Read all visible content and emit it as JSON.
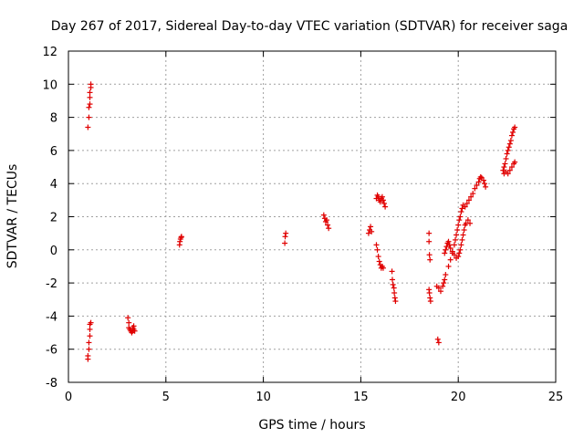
{
  "chart_data": {
    "type": "scatter",
    "title": "Day 267 of 2017, Sidereal Day-to-day VTEC variation (SDTVAR) for receiver saga",
    "xlabel": "GPS time / hours",
    "ylabel": "SDTVAR / TECUs",
    "xlim": [
      0,
      25
    ],
    "ylim": [
      -8,
      12
    ],
    "xticks": [
      0,
      5,
      10,
      15,
      20,
      25
    ],
    "yticks": [
      -8,
      -6,
      -4,
      -2,
      0,
      2,
      4,
      6,
      8,
      10,
      12
    ],
    "grid": true,
    "marker": "plus",
    "color": "#e00000",
    "series": [
      {
        "name": "SDTVAR",
        "points": [
          [
            1.0,
            7.4
          ],
          [
            1.05,
            8.0
          ],
          [
            1.05,
            8.6
          ],
          [
            1.1,
            8.8
          ],
          [
            1.1,
            9.2
          ],
          [
            1.1,
            9.5
          ],
          [
            1.15,
            9.8
          ],
          [
            1.15,
            10.0
          ],
          [
            1.0,
            -6.6
          ],
          [
            1.0,
            -6.4
          ],
          [
            1.05,
            -6.0
          ],
          [
            1.05,
            -5.6
          ],
          [
            1.1,
            -5.2
          ],
          [
            1.1,
            -4.8
          ],
          [
            1.1,
            -4.5
          ],
          [
            1.15,
            -4.4
          ],
          [
            3.05,
            -4.1
          ],
          [
            3.1,
            -4.4
          ],
          [
            3.1,
            -4.7
          ],
          [
            3.15,
            -4.8
          ],
          [
            3.2,
            -4.9
          ],
          [
            3.25,
            -5.0
          ],
          [
            3.3,
            -4.9
          ],
          [
            3.3,
            -4.7
          ],
          [
            3.35,
            -4.6
          ],
          [
            3.35,
            -4.8
          ],
          [
            3.4,
            -4.9
          ],
          [
            5.7,
            0.3
          ],
          [
            5.72,
            0.5
          ],
          [
            5.75,
            0.65
          ],
          [
            5.78,
            0.75
          ],
          [
            5.8,
            0.8
          ],
          [
            11.1,
            0.4
          ],
          [
            11.12,
            0.8
          ],
          [
            11.15,
            1.0
          ],
          [
            13.1,
            2.1
          ],
          [
            13.15,
            1.9
          ],
          [
            13.2,
            1.7
          ],
          [
            13.25,
            1.8
          ],
          [
            13.3,
            1.5
          ],
          [
            13.35,
            1.3
          ],
          [
            15.4,
            1.0
          ],
          [
            15.45,
            1.2
          ],
          [
            15.5,
            1.4
          ],
          [
            15.55,
            1.1
          ],
          [
            15.8,
            0.3
          ],
          [
            15.85,
            0.0
          ],
          [
            15.9,
            -0.4
          ],
          [
            15.95,
            -0.7
          ],
          [
            16.0,
            -0.9
          ],
          [
            16.05,
            -1.1
          ],
          [
            16.1,
            -1.0
          ],
          [
            16.15,
            -1.1
          ],
          [
            15.8,
            3.1
          ],
          [
            15.85,
            3.3
          ],
          [
            15.9,
            3.2
          ],
          [
            15.95,
            3.0
          ],
          [
            16.0,
            2.9
          ],
          [
            16.05,
            3.1
          ],
          [
            16.1,
            3.2
          ],
          [
            16.15,
            3.0
          ],
          [
            16.2,
            2.8
          ],
          [
            16.25,
            2.6
          ],
          [
            16.6,
            -1.3
          ],
          [
            16.62,
            -1.8
          ],
          [
            16.65,
            -2.1
          ],
          [
            16.7,
            -2.3
          ],
          [
            16.72,
            -2.6
          ],
          [
            16.75,
            -2.9
          ],
          [
            16.78,
            -3.1
          ],
          [
            18.5,
            1.0
          ],
          [
            18.5,
            0.5
          ],
          [
            18.52,
            -0.3
          ],
          [
            18.55,
            -0.6
          ],
          [
            18.5,
            -2.4
          ],
          [
            18.52,
            -2.6
          ],
          [
            18.55,
            -2.9
          ],
          [
            18.58,
            -3.1
          ],
          [
            18.95,
            -5.4
          ],
          [
            19.0,
            -5.6
          ],
          [
            18.9,
            -2.2
          ],
          [
            19.0,
            -2.3
          ],
          [
            19.1,
            -2.5
          ],
          [
            19.2,
            -2.2
          ],
          [
            19.25,
            -2.0
          ],
          [
            19.3,
            -1.8
          ],
          [
            19.35,
            -1.5
          ],
          [
            19.3,
            -0.2
          ],
          [
            19.35,
            0.0
          ],
          [
            19.4,
            0.2
          ],
          [
            19.45,
            0.4
          ],
          [
            19.5,
            0.5
          ],
          [
            19.55,
            0.3
          ],
          [
            19.6,
            0.1
          ],
          [
            19.7,
            -0.1
          ],
          [
            19.8,
            -0.3
          ],
          [
            19.9,
            -0.5
          ],
          [
            20.0,
            -0.4
          ],
          [
            20.05,
            -0.2
          ],
          [
            20.1,
            0.0
          ],
          [
            20.15,
            0.3
          ],
          [
            20.2,
            0.6
          ],
          [
            20.25,
            0.9
          ],
          [
            20.3,
            1.2
          ],
          [
            20.35,
            1.5
          ],
          [
            20.4,
            1.6
          ],
          [
            20.5,
            1.8
          ],
          [
            20.6,
            1.6
          ],
          [
            19.5,
            -1.0
          ],
          [
            19.6,
            -0.6
          ],
          [
            19.7,
            -0.2
          ],
          [
            19.8,
            0.3
          ],
          [
            19.85,
            0.6
          ],
          [
            19.9,
            0.9
          ],
          [
            19.95,
            1.2
          ],
          [
            20.0,
            1.5
          ],
          [
            20.05,
            1.8
          ],
          [
            20.1,
            2.0
          ],
          [
            20.15,
            2.3
          ],
          [
            20.2,
            2.5
          ],
          [
            20.25,
            2.7
          ],
          [
            20.35,
            2.6
          ],
          [
            20.45,
            2.8
          ],
          [
            20.55,
            3.0
          ],
          [
            20.65,
            3.2
          ],
          [
            20.75,
            3.4
          ],
          [
            20.85,
            3.7
          ],
          [
            20.95,
            3.9
          ],
          [
            21.05,
            4.1
          ],
          [
            21.1,
            4.3
          ],
          [
            21.15,
            4.4
          ],
          [
            21.2,
            4.35
          ],
          [
            21.3,
            4.2
          ],
          [
            21.35,
            4.0
          ],
          [
            21.4,
            3.8
          ],
          [
            22.3,
            4.8
          ],
          [
            22.35,
            5.0
          ],
          [
            22.4,
            5.2
          ],
          [
            22.45,
            5.5
          ],
          [
            22.5,
            5.8
          ],
          [
            22.55,
            6.0
          ],
          [
            22.6,
            6.2
          ],
          [
            22.65,
            6.4
          ],
          [
            22.7,
            6.6
          ],
          [
            22.75,
            6.9
          ],
          [
            22.8,
            7.1
          ],
          [
            22.85,
            7.3
          ],
          [
            22.9,
            7.4
          ],
          [
            22.35,
            4.6
          ],
          [
            22.45,
            4.7
          ],
          [
            22.55,
            4.6
          ],
          [
            22.65,
            4.8
          ],
          [
            22.75,
            5.0
          ],
          [
            22.85,
            5.2
          ],
          [
            22.9,
            5.3
          ]
        ]
      }
    ]
  }
}
